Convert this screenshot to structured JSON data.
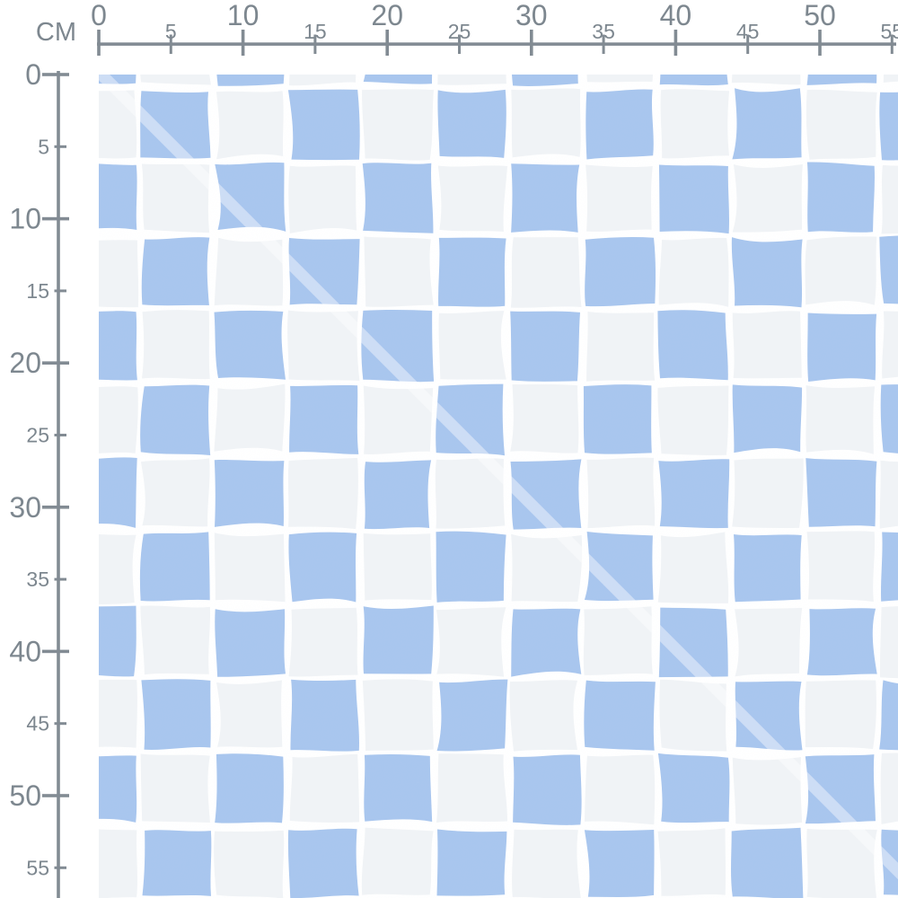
{
  "page": {
    "background_color": "#ffffff"
  },
  "ruler": {
    "units_label": "CM",
    "text_color": "#7d878f",
    "line_color": "#828b93",
    "tick_interval_cm": 5,
    "range_cm": [
      0,
      55
    ],
    "ticks": [
      {
        "cm": 0,
        "label": "0",
        "major": true
      },
      {
        "cm": 5,
        "label": "5",
        "major": false
      },
      {
        "cm": 10,
        "label": "10",
        "major": true
      },
      {
        "cm": 15,
        "label": "15",
        "major": false
      },
      {
        "cm": 20,
        "label": "20",
        "major": true
      },
      {
        "cm": 25,
        "label": "25",
        "major": false
      },
      {
        "cm": 30,
        "label": "30",
        "major": true
      },
      {
        "cm": 35,
        "label": "35",
        "major": false
      },
      {
        "cm": 40,
        "label": "40",
        "major": true
      },
      {
        "cm": 45,
        "label": "45",
        "major": false
      },
      {
        "cm": 50,
        "label": "50",
        "major": true
      },
      {
        "cm": 55,
        "label": "55",
        "major": false
      }
    ]
  },
  "pattern": {
    "kind": "hand-drawn checkerboard",
    "square_size_cm": 5,
    "colors": {
      "blue": "#a7c5ee",
      "off_white": "#f0f3f6",
      "gap_white": "#ffffff",
      "diagonal_sheen": "#ffffff"
    },
    "diagonal_sheen_opacity": 0.42
  }
}
